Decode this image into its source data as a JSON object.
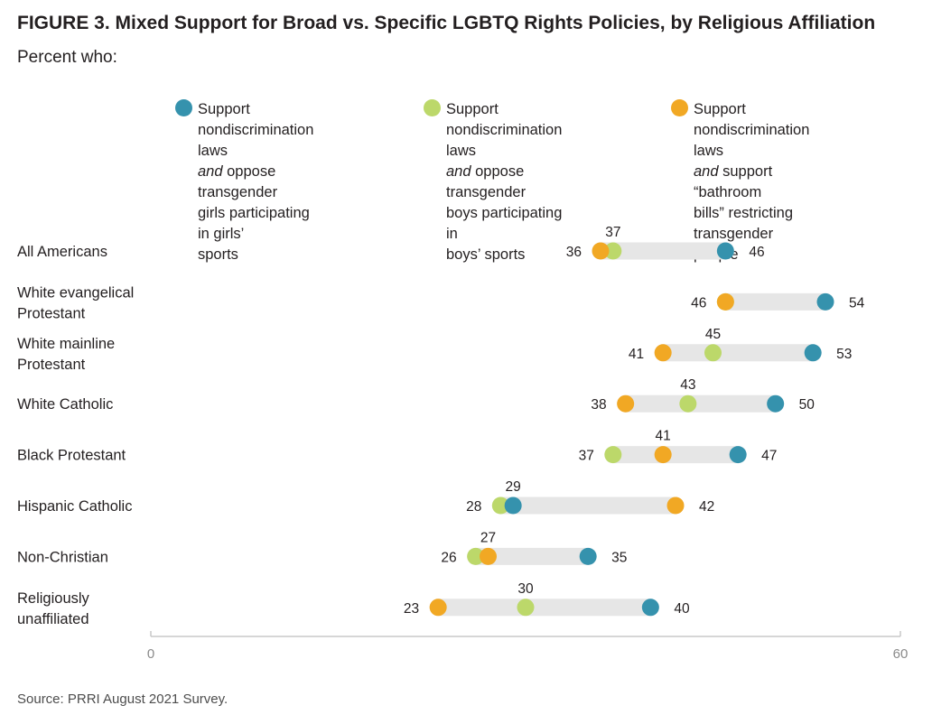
{
  "title": "FIGURE 3.  Mixed Support for Broad vs. Specific LGBTQ Rights Policies, by Religious Affiliation",
  "subtitle": "Percent who:",
  "source": "Source: PRRI August 2021 Survey.",
  "legend": [
    {
      "line1": "Support",
      "line2": "nondiscrimination laws",
      "line3_em": "and",
      "line3_rest": " oppose transgender",
      "line4": "girls participating in girls’",
      "line5": "sports",
      "color": "#3592ad"
    },
    {
      "line1": "Support",
      "line2": "nondiscrimination laws",
      "line3_em": "and",
      "line3_rest": " oppose transgender",
      "line4": "boys participating in",
      "line5": "boys’ sports",
      "color": "#bcd86a"
    },
    {
      "line1": "Support",
      "line2": "nondiscrimination laws",
      "line3_em": "and",
      "line3_rest": " support “bathroom",
      "line4": "bills” restricting",
      "line5": "transgender people",
      "color": "#f1a824"
    }
  ],
  "chart_data": {
    "type": "scatter",
    "title": "FIGURE 3.  Mixed Support for Broad vs. Specific LGBTQ Rights Policies, by Religious Affiliation",
    "subtitle": "Percent who:",
    "xlim": [
      0,
      60
    ],
    "xticks": [
      "0",
      "60"
    ],
    "grid": false,
    "legend_position": "top",
    "categories": [
      [
        "All Americans"
      ],
      [
        "White evangelical",
        "Protestant"
      ],
      [
        "White mainline",
        "Protestant"
      ],
      [
        "White Catholic"
      ],
      [
        "Black Protestant"
      ],
      [
        "Hispanic Catholic"
      ],
      [
        "Non-Christian"
      ],
      [
        "Religiously",
        "unaffiliated"
      ]
    ],
    "series": [
      {
        "key": "girls_sports",
        "color": "#3592ad",
        "values": [
          46,
          54,
          53,
          50,
          47,
          29,
          35,
          40
        ]
      },
      {
        "key": "boys_sports",
        "color": "#bcd86a",
        "values": [
          37,
          46,
          45,
          43,
          37,
          28,
          26,
          30
        ]
      },
      {
        "key": "bathroom_bills",
        "color": "#f1a824",
        "values": [
          36,
          46,
          41,
          38,
          41,
          42,
          27,
          23
        ]
      }
    ]
  }
}
